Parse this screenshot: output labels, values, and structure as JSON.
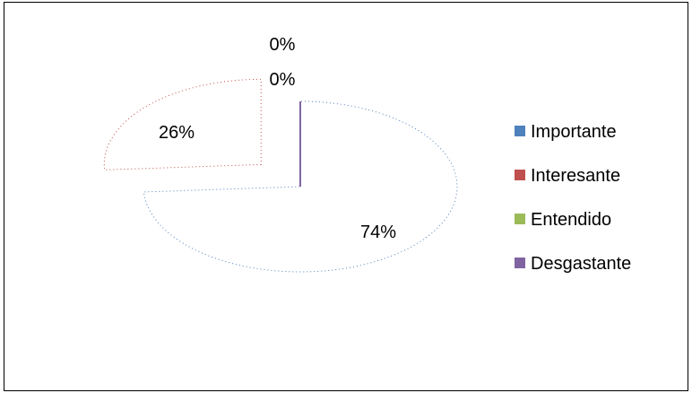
{
  "chart_data": {
    "type": "pie",
    "categories": [
      "Importante",
      "Interesante",
      "Entendido",
      "Desgastante"
    ],
    "values": [
      74,
      26,
      0,
      0
    ],
    "data_labels": [
      "74%",
      "26%",
      "0%",
      "0%"
    ],
    "colors": [
      "#4F81BD",
      "#C0504D",
      "#9BBB59",
      "#8064A2"
    ],
    "legend_position": "right",
    "style": "3d-exploded-outline"
  }
}
